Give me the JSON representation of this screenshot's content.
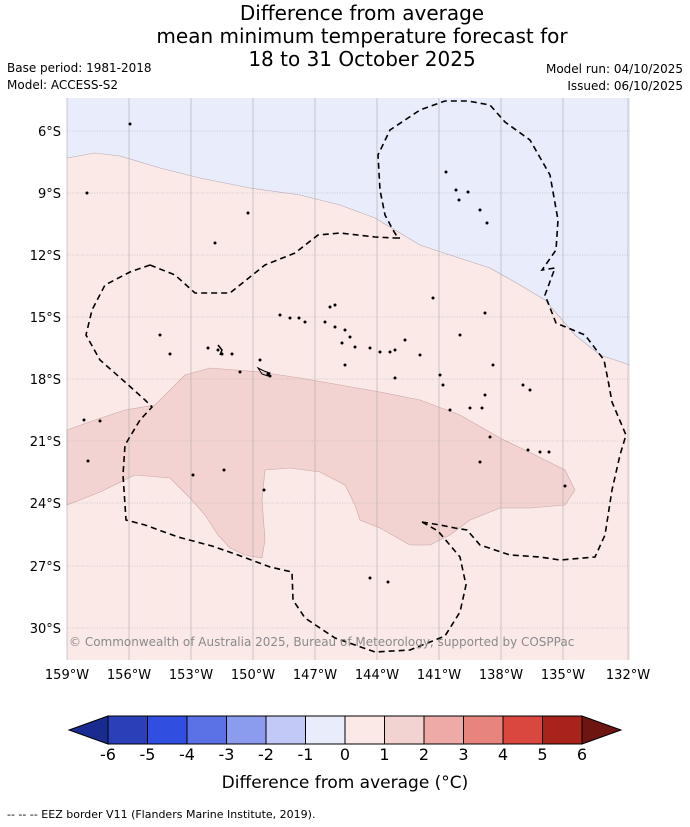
{
  "title": {
    "line1": "Difference from average",
    "line2": "mean minimum temperature forecast for",
    "line3": "18 to 31 October 2025"
  },
  "meta": {
    "base_period": "Base period: 1981-2018",
    "model": "Model: ACCESS-S2",
    "model_run": "Model run: 04/10/2025",
    "issued": "Issued: 06/10/2025"
  },
  "map": {
    "lat_labels": [
      "6°S",
      "9°S",
      "12°S",
      "15°S",
      "18°S",
      "21°S",
      "24°S",
      "27°S",
      "30°S"
    ],
    "lon_labels": [
      "159°W",
      "156°W",
      "153°W",
      "150°W",
      "147°W",
      "144°W",
      "141°W",
      "138°W",
      "135°W",
      "132°W"
    ],
    "copyright": "© Commonwealth of Australia 2025, Bureau of Meteorology, supported by COSPPac",
    "colors": {
      "cool_-1_0": "#e8ecfb",
      "warm_0_1": "#fbe9e8",
      "warm_1_2": "#f3d3d1",
      "border": "#000000"
    }
  },
  "colorbar": {
    "ticks": [
      "-6",
      "-5",
      "-4",
      "-3",
      "-2",
      "-1",
      "0",
      "1",
      "2",
      "3",
      "4",
      "5",
      "6"
    ],
    "colors": [
      "#1a2b8f",
      "#2a3fb8",
      "#304ee0",
      "#5b72e6",
      "#8b9bee",
      "#c2c9f6",
      "#e8ecfb",
      "#fbe9e8",
      "#f3d3d1",
      "#eeaaa7",
      "#e8847e",
      "#d9473f",
      "#a9231d",
      "#6e1411"
    ],
    "label": "Difference from average (°C)"
  },
  "footnote": "-- -- -- EEZ border V11 (Flanders Marine Institute, 2019)."
}
